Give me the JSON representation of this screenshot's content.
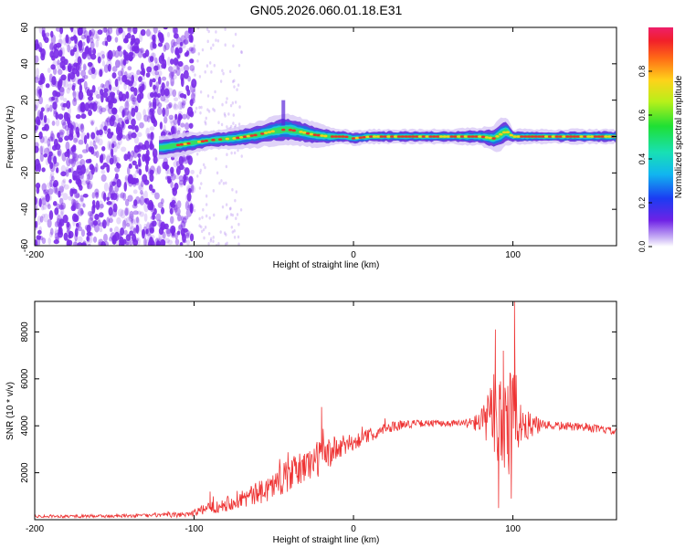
{
  "title": "GN05.2026.060.01.18.E31",
  "colors": {
    "frame": "#000000",
    "snr_line": "#ee3333",
    "spectrogram_scatter": "#7a2be8",
    "ridge_core": "#e8322a",
    "ridge_mid": "#33dd66",
    "ridge_outer": "#1f6fe0",
    "ridge_halo": "#5a25d8"
  },
  "chart_data": [
    {
      "type": "heatmap",
      "xlabel": "Height of straight line (km)",
      "ylabel": "Frequency (Hz)",
      "xlim": [
        -200,
        165
      ],
      "ylim": [
        -60,
        60
      ],
      "x_ticks": [
        "-200",
        "-100",
        "0",
        "100"
      ],
      "x_tick_values": [
        -200,
        -100,
        0,
        100
      ],
      "y_ticks": [
        "-60",
        "-40",
        "-20",
        "0",
        "20",
        "40",
        "60"
      ],
      "y_tick_values": [
        -60,
        -40,
        -20,
        0,
        20,
        40,
        60
      ],
      "colorbar": {
        "label": "Normalized spectral amplitude",
        "range": [
          0,
          1
        ],
        "ticks": [
          "0.0",
          "0.2",
          "0.4",
          "0.6",
          "0.8"
        ],
        "tick_values": [
          0.0,
          0.2,
          0.4,
          0.6,
          0.8
        ]
      },
      "description_ridge": {
        "x": [
          -120,
          -105,
          -90,
          -75,
          -60,
          -50,
          -42,
          -35,
          -25,
          -15,
          -5,
          0,
          10,
          20,
          40,
          60,
          80,
          88,
          92,
          96,
          100,
          120,
          140,
          165
        ],
        "center_hz": [
          -6,
          -4,
          -2,
          -1,
          1,
          3,
          4,
          3,
          1,
          0,
          0,
          -1,
          0,
          0,
          0,
          0,
          0,
          -1,
          1,
          3,
          0,
          0,
          0,
          0
        ],
        "width_hz": [
          6,
          6,
          5,
          6,
          7,
          8,
          9,
          8,
          7,
          5,
          4,
          4,
          4,
          4,
          4,
          4,
          5,
          7,
          9,
          8,
          4,
          4,
          4,
          4
        ]
      }
    },
    {
      "type": "line",
      "xlabel": "Height of straight line (km)",
      "ylabel": "SNR (10 * v/v)",
      "xlim": [
        -200,
        165
      ],
      "ylim": [
        0,
        9300
      ],
      "x_ticks": [
        "-200",
        "-100",
        "0",
        "100"
      ],
      "x_tick_values": [
        -200,
        -100,
        0,
        100
      ],
      "y_ticks": [
        "2000",
        "4000",
        "6000",
        "8000"
      ],
      "y_tick_values": [
        2000,
        4000,
        6000,
        8000
      ],
      "series": [
        {
          "name": "SNR",
          "envelope_x": [
            -200,
            -150,
            -110,
            -100,
            -90,
            -80,
            -70,
            -60,
            -50,
            -40,
            -30,
            -20,
            -10,
            0,
            10,
            20,
            30,
            40,
            60,
            75,
            80,
            85,
            90,
            95,
            100,
            105,
            110,
            130,
            150,
            165
          ],
          "envelope_y": [
            150,
            150,
            200,
            300,
            500,
            700,
            900,
            1100,
            1500,
            1900,
            2300,
            2700,
            3000,
            3300,
            3600,
            3900,
            4050,
            4100,
            4100,
            4100,
            4200,
            4300,
            4600,
            4500,
            4300,
            4100,
            4000,
            4000,
            3900,
            3750
          ],
          "noise_x": [
            -200,
            -120,
            -100,
            -80,
            -60,
            -40,
            -20,
            0,
            20,
            40,
            70,
            80,
            85,
            90,
            95,
            100,
            105,
            120,
            165
          ],
          "noise_amp": [
            60,
            80,
            150,
            350,
            500,
            700,
            800,
            350,
            250,
            150,
            150,
            500,
            1200,
            2500,
            3500,
            2800,
            800,
            200,
            150
          ],
          "spikes": [
            {
              "x": -90,
              "y": 1200
            },
            {
              "x": -20,
              "y": 4800
            },
            {
              "x": 89,
              "y": 8100
            },
            {
              "x": 94,
              "y": 7200
            },
            {
              "x": 101,
              "y": 9300
            },
            {
              "x": 91,
              "y": 500
            },
            {
              "x": 99,
              "y": 900
            }
          ]
        }
      ]
    }
  ]
}
